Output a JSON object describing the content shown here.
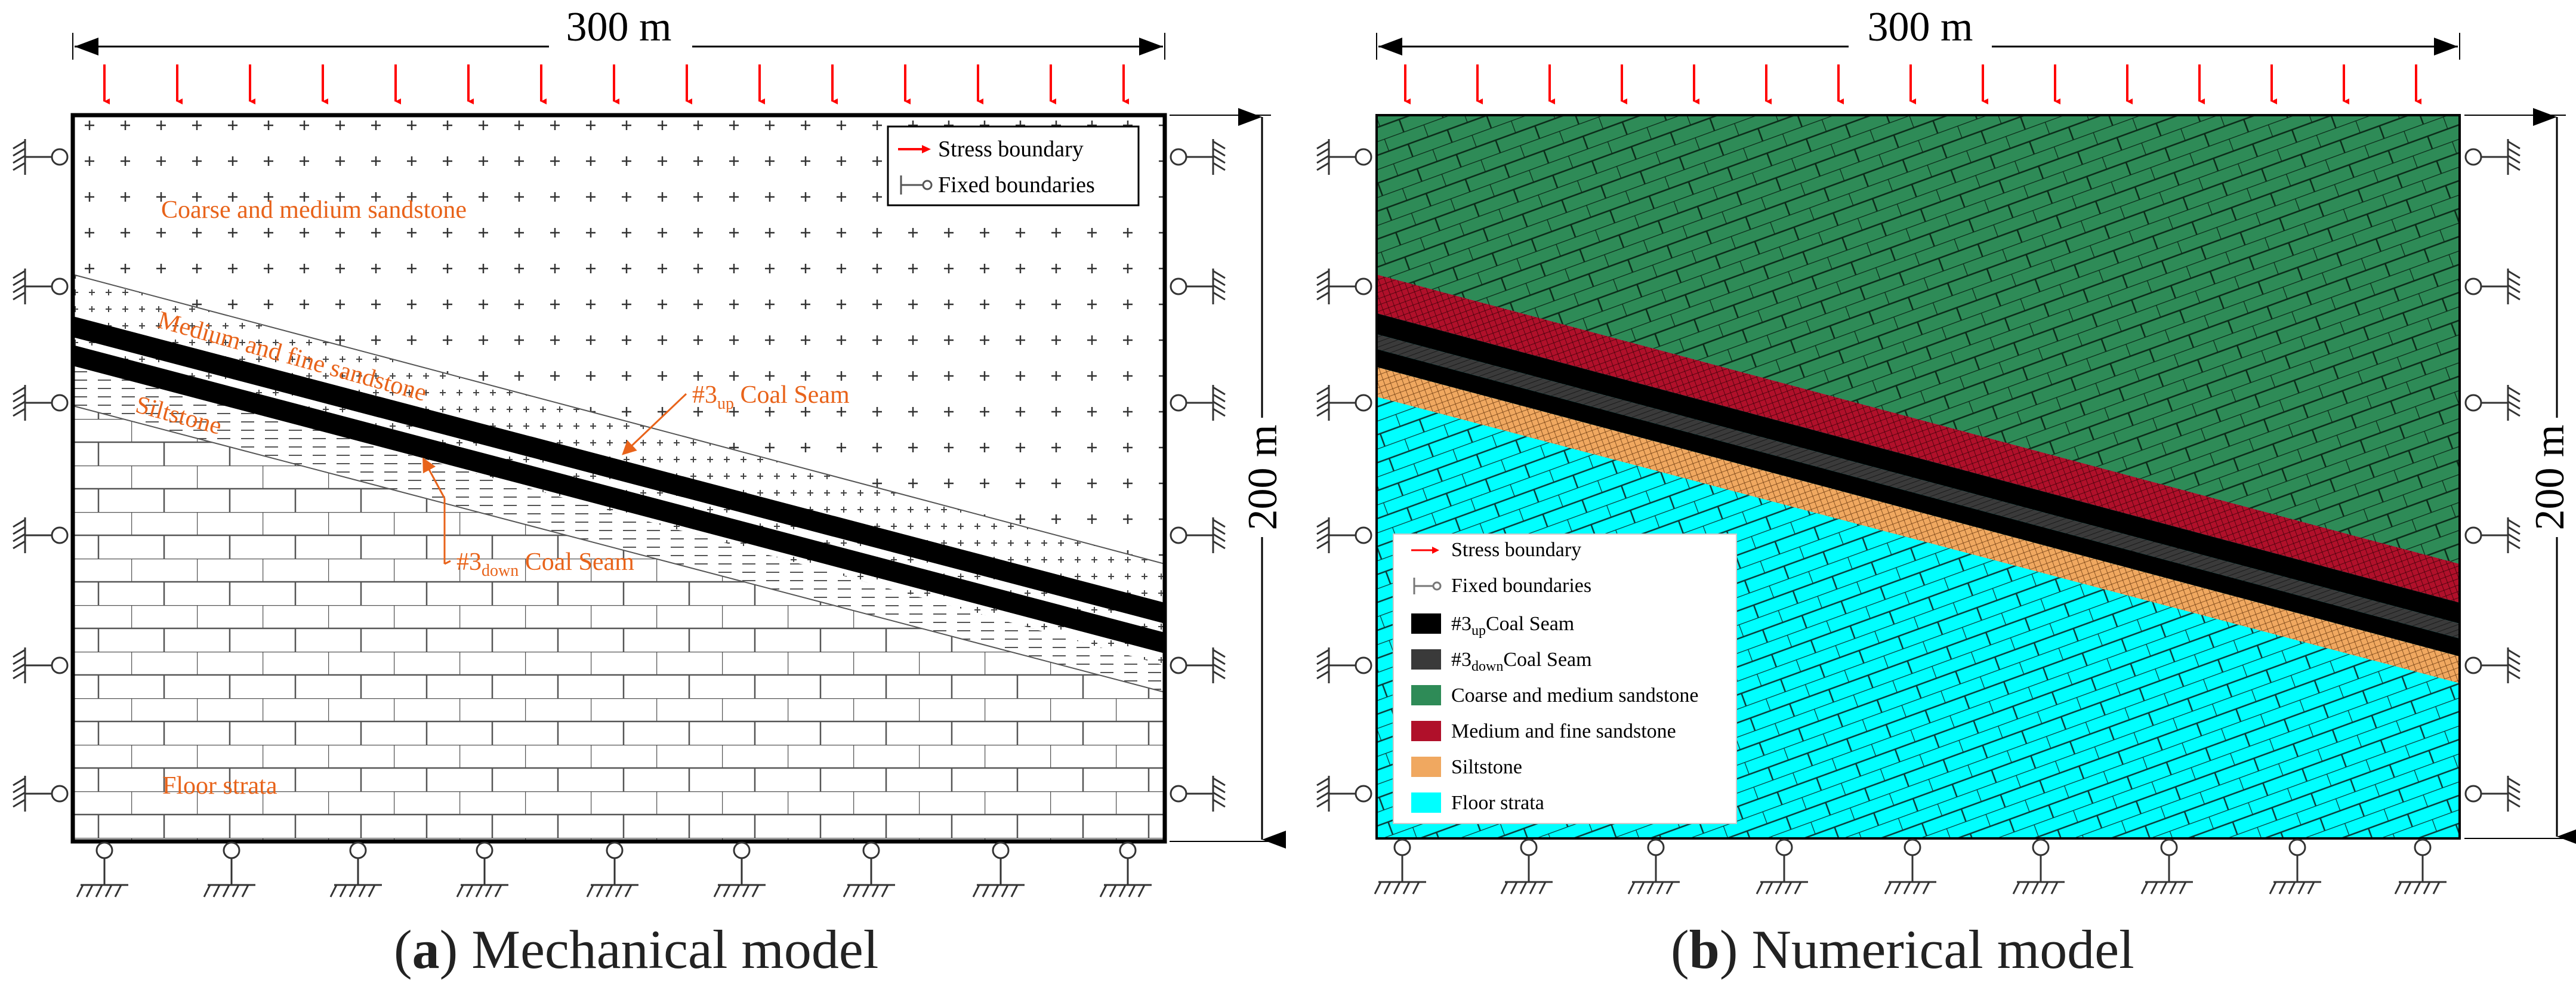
{
  "figure": {
    "panel_a": {
      "width_label": "300 m",
      "height_label": "200 m",
      "legend": {
        "stress": "Stress boundary",
        "fixed": "Fixed boundaries"
      },
      "labels": {
        "coarse": "Coarse and medium sandstone",
        "medium_fine": "Medium and fine sandstone",
        "siltstone": "Siltstone",
        "floor": "Floor strata",
        "up_seam_pre": "#3",
        "up_seam_sub": "up",
        "up_seam_post": " Coal Seam",
        "down_seam_pre": "#3",
        "down_seam_sub": "down",
        "down_seam_post": " Coal Seam"
      },
      "caption": {
        "letter": "a",
        "text": " Mechanical model"
      }
    },
    "panel_b": {
      "width_label": "300 m",
      "height_label": "200 m",
      "legend": {
        "stress": "Stress boundary",
        "fixed": "Fixed boundaries",
        "up_pre": "#3",
        "up_sub": "up",
        "up_post": "Coal Seam",
        "down_pre": "#3",
        "down_sub": "down",
        "down_post": "Coal Seam",
        "coarse": "Coarse and medium sandstone",
        "medium_fine": "Medium and fine sandstone",
        "siltstone": "Siltstone",
        "floor": "Floor strata"
      },
      "caption": {
        "letter": "b",
        "text": " Numerical model"
      }
    },
    "colors": {
      "arrow_red": "#ff0000",
      "label_orange": "#e8631a",
      "coarse_green": "#2e8b57",
      "medium_red": "#b0102a",
      "siltstone_tan": "#f0a860",
      "floor_cyan": "#00ffff",
      "up_seam": "#000000",
      "down_seam": "#3a3a3a"
    }
  }
}
